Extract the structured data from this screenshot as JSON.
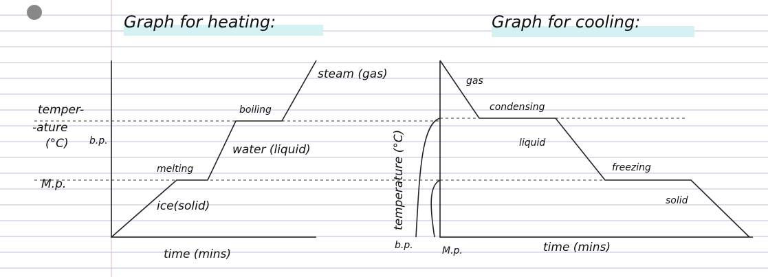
{
  "heating": {
    "title": "Graph for heating:",
    "y_axis_label": [
      "temper-",
      "-ature",
      "(°C)"
    ],
    "bp_label": "b.p.",
    "mp_label": "M.p.",
    "phases": {
      "gas": "steam (gas)",
      "boiling": "boiling",
      "liquid": "water (liquid)",
      "melting": "melting",
      "solid": "ice(solid)"
    },
    "x_axis_label": "time (mins)"
  },
  "cooling": {
    "title": "Graph for cooling:",
    "y_axis_label": "temperature (°C)",
    "bp_label": "b.p.",
    "mp_label": "M.p.",
    "phases": {
      "gas": "gas",
      "condensing": "condensing",
      "liquid": "liquid",
      "freezing": "freezing",
      "solid": "solid"
    },
    "x_axis_label": "time (mins)"
  }
}
